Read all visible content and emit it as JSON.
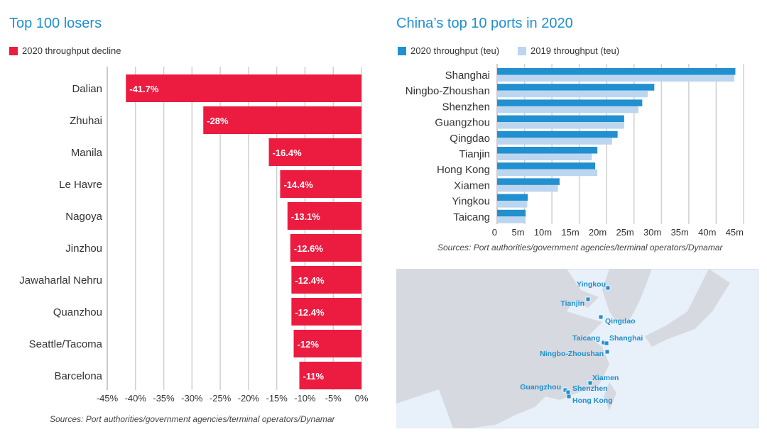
{
  "chart_data": [
    {
      "type": "bar",
      "orientation": "horizontal",
      "title": "Top 100 losers",
      "series": [
        {
          "name": "2020 throughput decline",
          "color": "#ec1c40",
          "values": [
            -41.7,
            -28,
            -16.4,
            -14.4,
            -13.1,
            -12.6,
            -12.4,
            -12.4,
            -12,
            -11
          ]
        }
      ],
      "categories": [
        "Dalian",
        "Zhuhai",
        "Manila",
        "Le Havre",
        "Nagoya",
        "Jinzhou",
        "Jawaharlal Nehru",
        "Quanzhou",
        "Seattle/Tacoma",
        "Barcelona"
      ],
      "data_labels": [
        "-41.7%",
        "-28%",
        "-16.4%",
        "-14.4%",
        "-13.1%",
        "-12.6%",
        "-12.4%",
        "-12.4%",
        "-12%",
        "-11%"
      ],
      "xlim": [
        -45,
        0
      ],
      "x_ticks": [
        "-45%",
        "-40%",
        "-35%",
        "-30%",
        "-25%",
        "-20%",
        "-15%",
        "-10%",
        "-5%",
        "0%"
      ],
      "grid": true,
      "legend": "top-left",
      "source": "Sources: Port authorities/government agencies/terminal operators/Dynamar"
    },
    {
      "type": "bar",
      "orientation": "horizontal",
      "title": "China’s top 10 ports in 2020",
      "categories": [
        "Shanghai",
        "Ningbo-Zhoushan",
        "Shenzhen",
        "Guangzhou",
        "Qingdao",
        "Tianjin",
        "Hong Kong",
        "Xiamen",
        "Yingkou",
        "Taicang"
      ],
      "series": [
        {
          "name": "2020 throughput (teu)",
          "color": "#2190d0",
          "values": [
            43.5,
            28.7,
            26.5,
            23.2,
            22.0,
            18.3,
            17.9,
            11.4,
            5.6,
            5.2
          ]
        },
        {
          "name": "2019 throughput (teu)",
          "color": "#bcd6f0",
          "values": [
            43.3,
            27.5,
            25.8,
            23.2,
            21.0,
            17.3,
            18.3,
            11.1,
            5.5,
            5.2
          ]
        }
      ],
      "xlim": [
        0,
        45
      ],
      "x_ticks": [
        "0",
        "5m",
        "10m",
        "15m",
        "20m",
        "25m",
        "30m",
        "35m",
        "40m",
        "45m"
      ],
      "grid": true,
      "legend": "top-left",
      "source": "Sources: Port authorities/government agencies/terminal operators/Dynamar"
    }
  ],
  "map": {
    "marker_color": "#2190d0",
    "labels": [
      "Yingkou",
      "Tianjin",
      "Qingdao",
      "Taicang",
      "Shanghai",
      "Ningbo-Zhoushan",
      "Xiamen",
      "Guangzhou",
      "Shenzhen",
      "Hong Kong"
    ]
  }
}
